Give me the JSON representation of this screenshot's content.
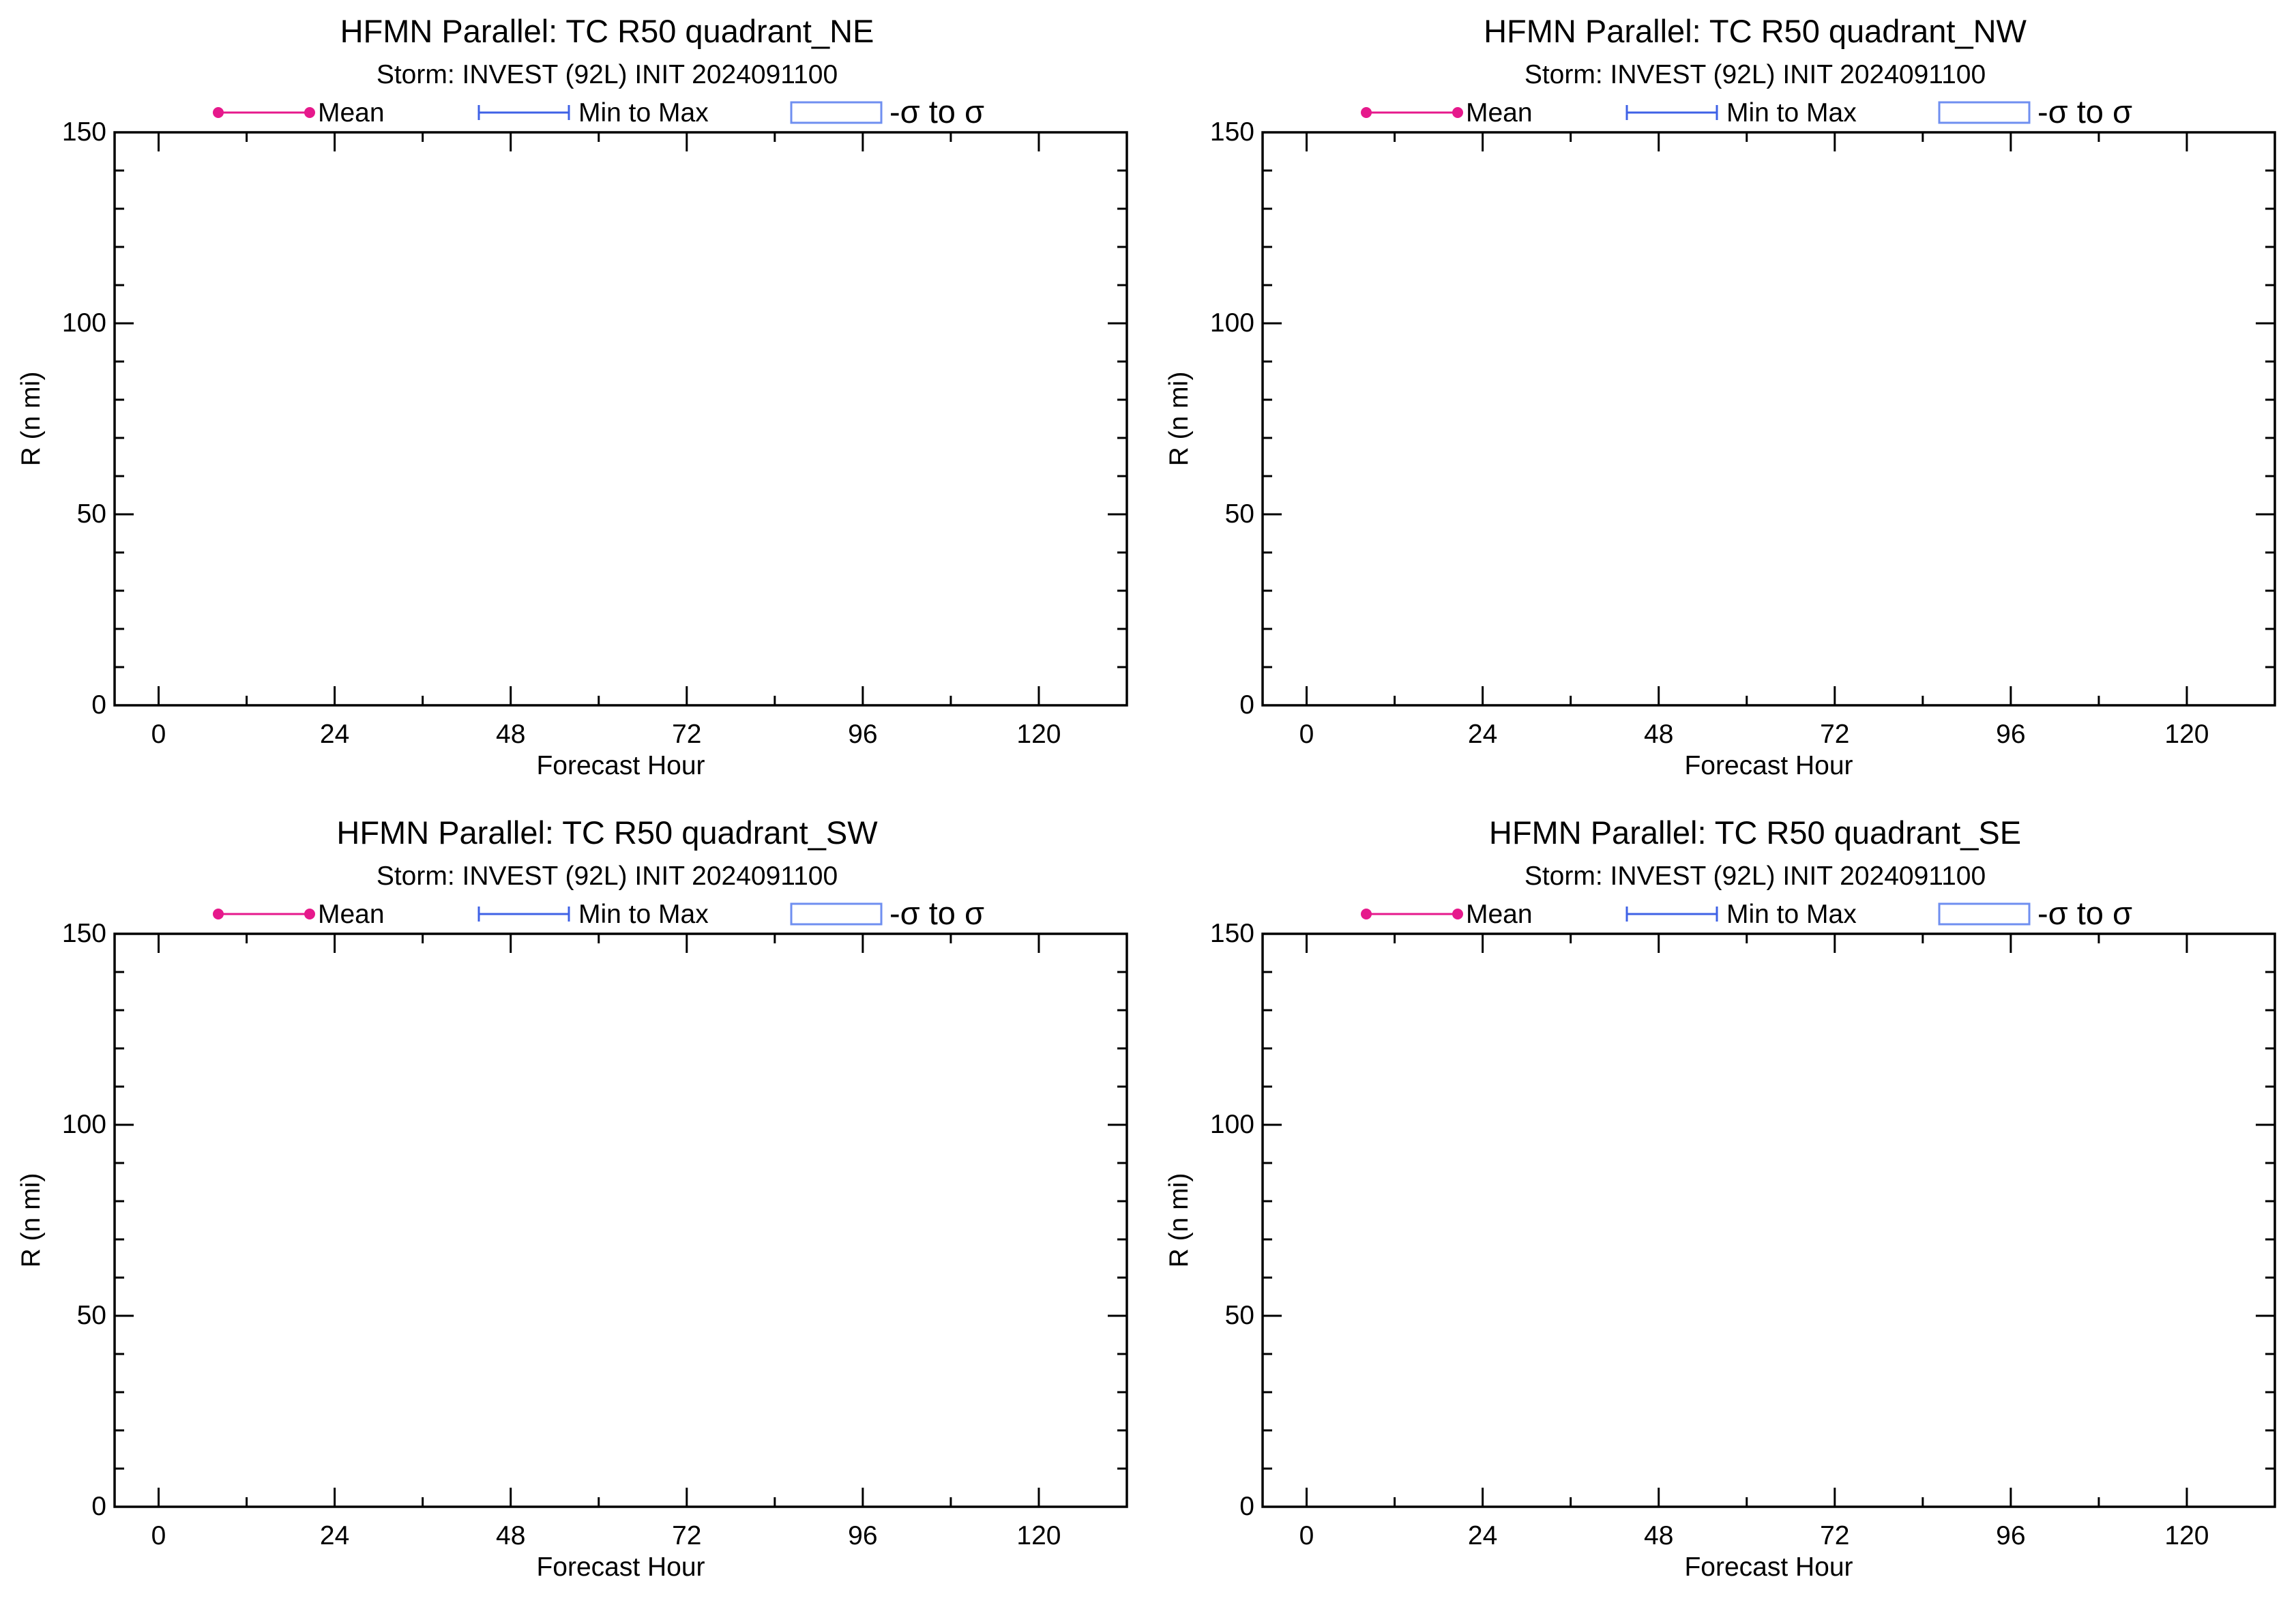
{
  "colors": {
    "mean": "#e6198c",
    "minmax": "#3f62e6",
    "sigma": "#6f8ff0",
    "axis": "#000000"
  },
  "legend": {
    "mean": "Mean",
    "minmax": "Min to Max",
    "sigma": "-σ to σ"
  },
  "chart_data": [
    {
      "type": "line",
      "title": "HFMN Parallel: TC  R50 quadrant_NE",
      "subtitle": "Storm: INVEST (92L) INIT 2024091100",
      "xlabel": "Forecast Hour",
      "ylabel": "R (n mi)",
      "xlim": [
        -6,
        132
      ],
      "ylim": [
        0,
        150
      ],
      "xticks": [
        0,
        24,
        48,
        72,
        96,
        120
      ],
      "yticks": [
        0,
        50,
        100,
        150
      ],
      "grid": false,
      "legend_position": "top",
      "series": []
    },
    {
      "type": "line",
      "title": "HFMN Parallel: TC  R50 quadrant_NW",
      "subtitle": "Storm: INVEST (92L) INIT 2024091100",
      "xlabel": "Forecast Hour",
      "ylabel": "R (n mi)",
      "xlim": [
        -6,
        132
      ],
      "ylim": [
        0,
        150
      ],
      "xticks": [
        0,
        24,
        48,
        72,
        96,
        120
      ],
      "yticks": [
        0,
        50,
        100,
        150
      ],
      "grid": false,
      "legend_position": "top",
      "series": []
    },
    {
      "type": "line",
      "title": "HFMN Parallel: TC  R50 quadrant_SW",
      "subtitle": "Storm: INVEST (92L) INIT 2024091100",
      "xlabel": "Forecast Hour",
      "ylabel": "R (n mi)",
      "xlim": [
        -6,
        132
      ],
      "ylim": [
        0,
        150
      ],
      "xticks": [
        0,
        24,
        48,
        72,
        96,
        120
      ],
      "yticks": [
        0,
        50,
        100,
        150
      ],
      "grid": false,
      "legend_position": "top",
      "series": []
    },
    {
      "type": "line",
      "title": "HFMN Parallel: TC  R50 quadrant_SE",
      "subtitle": "Storm: INVEST (92L) INIT 2024091100",
      "xlabel": "Forecast Hour",
      "ylabel": "R (n mi)",
      "xlim": [
        -6,
        132
      ],
      "ylim": [
        0,
        150
      ],
      "xticks": [
        0,
        24,
        48,
        72,
        96,
        120
      ],
      "yticks": [
        0,
        50,
        100,
        150
      ],
      "grid": false,
      "legend_position": "top",
      "series": []
    }
  ]
}
